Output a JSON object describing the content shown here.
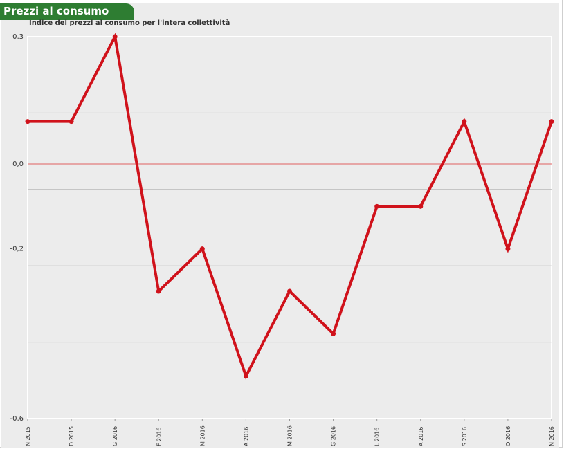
{
  "header": {
    "title": "Prezzi al consumo",
    "subtitle": "Indice dei prezzi al consumo per l'intera collettività"
  },
  "colors": {
    "title_background": "#2e7d32",
    "line": "#d0121b",
    "zero_line": "#e06060",
    "grid": "#b8b8b8",
    "plot_background": "#ececec"
  },
  "chart_data": {
    "type": "line",
    "title": "Indice dei prezzi al consumo per l'intera collettività",
    "categories": [
      "N 2015",
      "D 2015",
      "G 2016",
      "F 2016",
      "M 2016",
      "A 2016",
      "M 2016",
      "G 2016",
      "L 2016",
      "A 2016",
      "S 2016",
      "O 2016",
      "N 2016"
    ],
    "series": [
      {
        "values": [
          0.1,
          0.1,
          0.3,
          -0.3,
          -0.2,
          -0.5,
          -0.3,
          -0.4,
          -0.1,
          -0.1,
          0.1,
          -0.2,
          0.1
        ]
      }
    ],
    "ylim": [
      -0.6,
      0.3
    ],
    "ytick_values": [
      0.3,
      0.0,
      -0.2,
      -0.6
    ],
    "ytick_labels": [
      "0,3",
      "0,0",
      "-0,2",
      "-0,6"
    ],
    "gridlines": [
      0.12,
      -0.06,
      -0.24,
      -0.42
    ],
    "grid": true,
    "legend": "none"
  }
}
